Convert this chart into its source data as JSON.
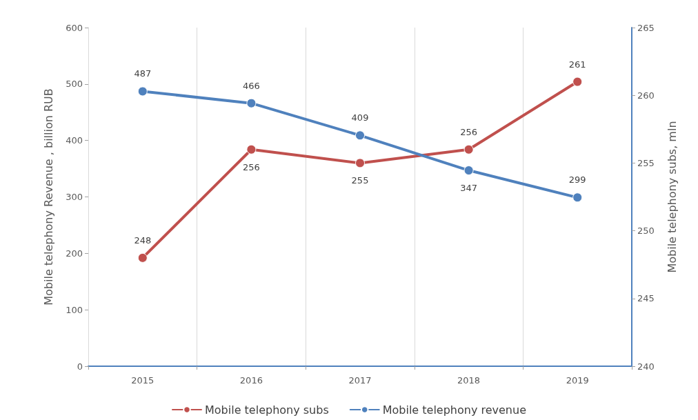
{
  "chart_data": {
    "type": "line",
    "ylabel": "Mobile telephony Revenue , billion RUB",
    "y2label": "Mobile telephony subs, mln",
    "categories": [
      "2015",
      "2016",
      "2017",
      "2018",
      "2019"
    ],
    "series": [
      {
        "name": "Mobile telephony subs",
        "color": "#c0504d",
        "values": [
          248,
          256,
          255,
          256,
          261
        ],
        "axis": "y2"
      },
      {
        "name": "Mobile telephony revenue",
        "color": "#4f81bd",
        "values": [
          487,
          466,
          409,
          347,
          299
        ]
      }
    ],
    "ylim": [
      0,
      600
    ],
    "yticks": [
      0,
      100,
      200,
      300,
      400,
      500,
      600
    ],
    "y2lim": [
      240,
      265
    ],
    "y2ticks": [
      240,
      245,
      250,
      255,
      260,
      265
    ],
    "grid": "x",
    "legend": "bottom",
    "marker": "circle",
    "line_style": "solid",
    "data_labels": true
  }
}
